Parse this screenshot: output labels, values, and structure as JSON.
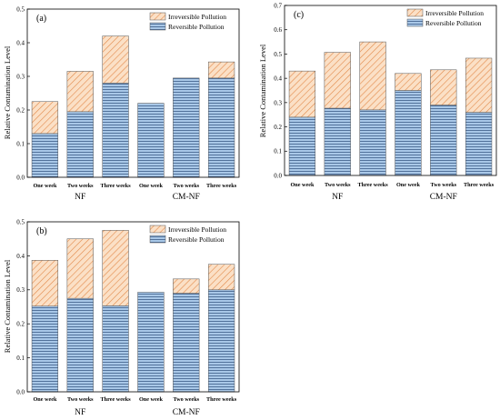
{
  "colors": {
    "reversible_fill": "#a9c8e8",
    "reversible_stripe": "#3c5c88",
    "irreversible_fill": "#fbe0c6",
    "irreversible_hatch": "#e28a4a",
    "axis": "#000000"
  },
  "chart_data": [
    {
      "type": "bar",
      "stacked": true,
      "panel": "(a)",
      "categories": [
        "One week",
        "Two weeks",
        "Three weeks",
        "One week",
        "Two weeks",
        "Three weeks"
      ],
      "groups": [
        {
          "label": "NF",
          "categories": [
            0,
            1,
            2
          ]
        },
        {
          "label": "CM-NF",
          "categories": [
            3,
            4,
            5
          ]
        }
      ],
      "ylabel": "Relative Contamination Level",
      "ylim": [
        0.0,
        0.5
      ],
      "yticks": [
        "0.0",
        "0.1",
        "0.2",
        "0.3",
        "0.4",
        "0.5"
      ],
      "grid": false,
      "legend_position": "top-right",
      "series": [
        {
          "name": "Reversible Pollution",
          "values": [
            0.13,
            0.195,
            0.28,
            0.22,
            0.295,
            0.295
          ]
        },
        {
          "name": "Irreversible Pollution",
          "values": [
            0.095,
            0.12,
            0.14,
            0.0,
            0.0,
            0.048
          ]
        }
      ]
    },
    {
      "type": "bar",
      "stacked": true,
      "panel": "(b)",
      "categories": [
        "One week",
        "Two weeks",
        "Three weeks",
        "One week",
        "Two weeks",
        "Three weeks"
      ],
      "groups": [
        {
          "label": "NF",
          "categories": [
            0,
            1,
            2
          ]
        },
        {
          "label": "CM-NF",
          "categories": [
            3,
            4,
            5
          ]
        }
      ],
      "ylabel": "Relative Contamination Level",
      "ylim": [
        0.0,
        0.5
      ],
      "yticks": [
        "0.0",
        "0.1",
        "0.2",
        "0.3",
        "0.4",
        "0.5"
      ],
      "grid": false,
      "legend_position": "top-right",
      "series": [
        {
          "name": "Reversible Pollution",
          "values": [
            0.252,
            0.275,
            0.253,
            0.293,
            0.29,
            0.3
          ]
        },
        {
          "name": "Irreversible Pollution",
          "values": [
            0.135,
            0.175,
            0.222,
            0.0,
            0.042,
            0.075
          ]
        }
      ]
    },
    {
      "type": "bar",
      "stacked": true,
      "panel": "(c)",
      "categories": [
        "One week",
        "Two weeks",
        "Three weeks",
        "One week",
        "Two weeks",
        "Three weeks"
      ],
      "groups": [
        {
          "label": "NF",
          "categories": [
            0,
            1,
            2
          ]
        },
        {
          "label": "CM-NF",
          "categories": [
            3,
            4,
            5
          ]
        }
      ],
      "ylabel": "Relative Contamination Level",
      "ylim": [
        0.0,
        0.7
      ],
      "yticks": [
        "0.0",
        "0.1",
        "0.2",
        "0.3",
        "0.4",
        "0.5",
        "0.6",
        "0.7"
      ],
      "grid": false,
      "legend_position": "top-right",
      "series": [
        {
          "name": "Reversible Pollution",
          "values": [
            0.24,
            0.277,
            0.27,
            0.35,
            0.29,
            0.26
          ]
        },
        {
          "name": "Irreversible Pollution",
          "values": [
            0.19,
            0.23,
            0.28,
            0.07,
            0.145,
            0.223
          ]
        }
      ]
    }
  ]
}
